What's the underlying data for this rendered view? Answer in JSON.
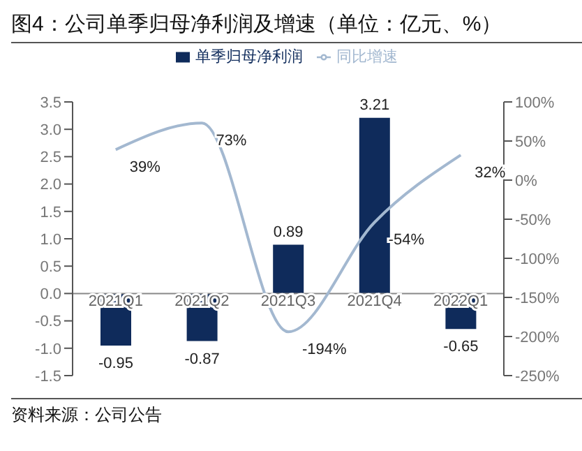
{
  "chart_data": {
    "type": "bar",
    "title": "图4：公司单季归母净利润及增速（单位：亿元、%）",
    "categories": [
      "2021Q1",
      "2021Q2",
      "2021Q3",
      "2021Q4",
      "2022Q1"
    ],
    "series": [
      {
        "name": "单季归母净利润",
        "color": "#0f2b5b",
        "values": [
          -0.95,
          -0.87,
          0.89,
          3.21,
          -0.65
        ]
      },
      {
        "name": "同比增速",
        "type": "line",
        "axis": "y2",
        "color": "#a3b8d0",
        "values": [
          39,
          73,
          -194,
          -54,
          32
        ],
        "value_labels": [
          "39%",
          "73%",
          "-194%",
          "-54%",
          "32%"
        ]
      }
    ],
    "ylim": [
      -1.5,
      3.5
    ],
    "yticks": [
      -1.5,
      {
        "value": -1,
        "label": "-1.0"
      },
      -0.5,
      {
        "value": 0,
        "label": "0.0"
      },
      0.5,
      {
        "value": 1,
        "label": "1.0"
      },
      1.5,
      {
        "value": 2,
        "label": "2.0"
      },
      2.5,
      {
        "value": 3,
        "label": "3.0"
      },
      3.5
    ],
    "y2lim": [
      -250,
      100
    ],
    "y2ticks": [
      {
        "value": -250,
        "label": "-250%"
      },
      {
        "value": -200,
        "label": "-200%"
      },
      {
        "value": -150,
        "label": "-150%"
      },
      {
        "value": -100,
        "label": "-100%"
      },
      {
        "value": -50,
        "label": "-50%"
      },
      {
        "value": 0,
        "label": "0%"
      },
      {
        "value": 50,
        "label": "50%"
      },
      {
        "value": 100,
        "label": "100%"
      }
    ],
    "data_labels": true,
    "legend": "top",
    "marker": "none",
    "annotations": [
      "资料来源：公司公告"
    ]
  }
}
